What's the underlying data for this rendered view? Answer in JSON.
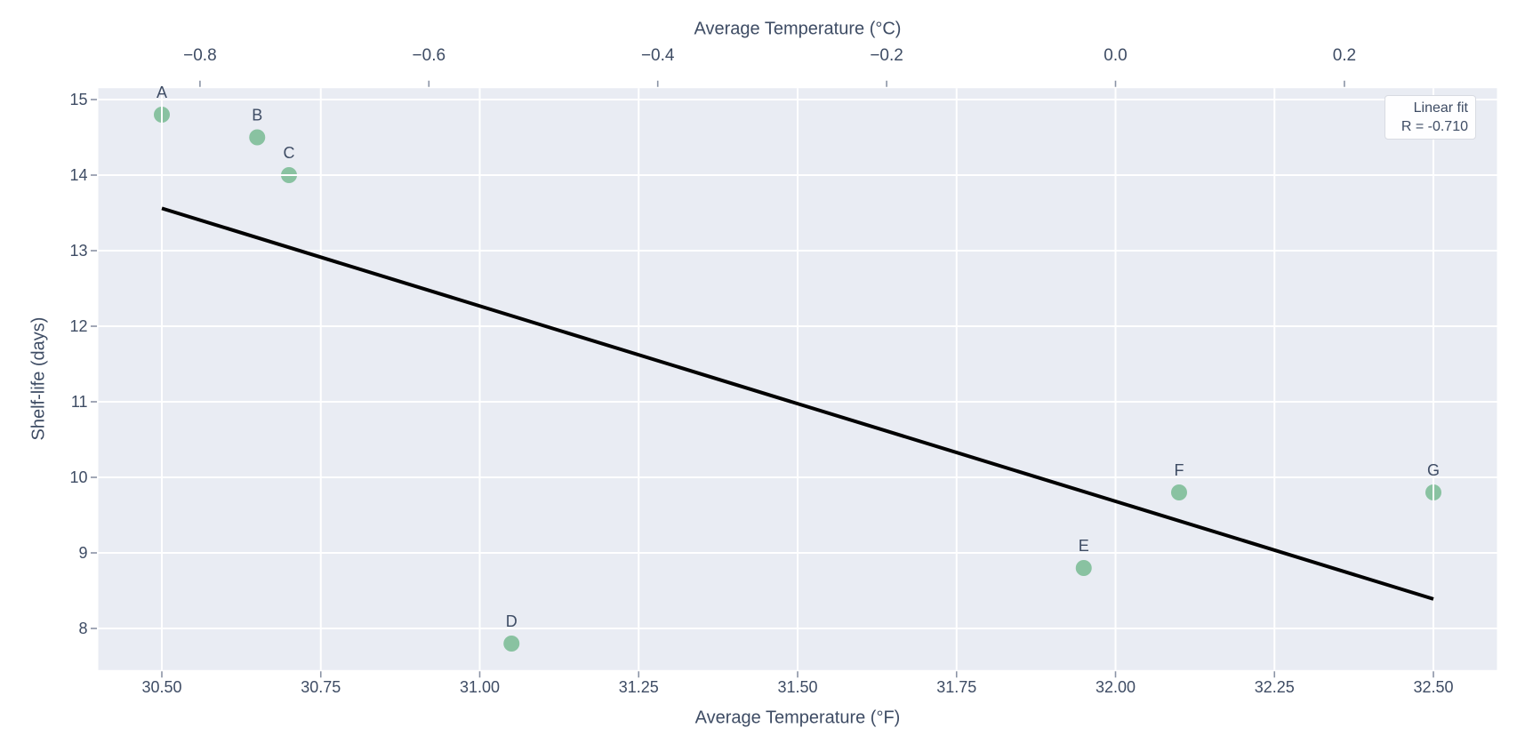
{
  "chart_data": {
    "type": "scatter",
    "xlabel": "Average Temperature (°F)",
    "top_axis_label": "Average Temperature (°C)",
    "ylabel": "Shelf-life (days)",
    "xlim": [
      30.4,
      32.6
    ],
    "ylim": [
      7.45,
      15.15
    ],
    "grid": true,
    "points": [
      {
        "label": "A",
        "x": 30.5,
        "y": 14.8
      },
      {
        "label": "B",
        "x": 30.65,
        "y": 14.5
      },
      {
        "label": "C",
        "x": 30.7,
        "y": 14.0
      },
      {
        "label": "D",
        "x": 31.05,
        "y": 7.8
      },
      {
        "label": "E",
        "x": 31.95,
        "y": 8.8
      },
      {
        "label": "F",
        "x": 32.1,
        "y": 9.8
      },
      {
        "label": "G",
        "x": 32.5,
        "y": 9.8
      }
    ],
    "fit_line": {
      "x1": 30.5,
      "y1": 13.56,
      "x2": 32.5,
      "y2": 8.39
    },
    "r_value": "-0.710",
    "legend": {
      "title": "Linear fit",
      "r_label": "R = -0.710",
      "position": "upper right"
    },
    "x_ticks": [
      {
        "v": 30.5,
        "label": "30.50"
      },
      {
        "v": 30.75,
        "label": "30.75"
      },
      {
        "v": 31.0,
        "label": "31.00"
      },
      {
        "v": 31.25,
        "label": "31.25"
      },
      {
        "v": 31.5,
        "label": "31.50"
      },
      {
        "v": 31.75,
        "label": "31.75"
      },
      {
        "v": 32.0,
        "label": "32.00"
      },
      {
        "v": 32.25,
        "label": "32.25"
      },
      {
        "v": 32.5,
        "label": "32.50"
      }
    ],
    "y_ticks": [
      {
        "v": 8,
        "label": "8"
      },
      {
        "v": 9,
        "label": "9"
      },
      {
        "v": 10,
        "label": "10"
      },
      {
        "v": 11,
        "label": "11"
      },
      {
        "v": 12,
        "label": "12"
      },
      {
        "v": 13,
        "label": "13"
      },
      {
        "v": 14,
        "label": "14"
      },
      {
        "v": 15,
        "label": "15"
      }
    ],
    "top_ticks": [
      {
        "c": -0.8,
        "f": 30.56,
        "label": "−0.8"
      },
      {
        "c": -0.6,
        "f": 30.92,
        "label": "−0.6"
      },
      {
        "c": -0.4,
        "f": 31.28,
        "label": "−0.4"
      },
      {
        "c": -0.2,
        "f": 31.64,
        "label": "−0.2"
      },
      {
        "c": 0.0,
        "f": 32.0,
        "label": "0.0"
      },
      {
        "c": 0.2,
        "f": 32.36,
        "label": "0.2"
      }
    ],
    "colors": {
      "figure_bg": "#ffffff",
      "plot_bg": "#e9ecf3",
      "grid": "#ffffff",
      "point": "#89c2a1",
      "fit_line": "#000000",
      "text": "#3e4c64",
      "tick": "#8a93a5",
      "legend_bg": "#fefeff",
      "legend_border": "#d8dbe2"
    }
  }
}
